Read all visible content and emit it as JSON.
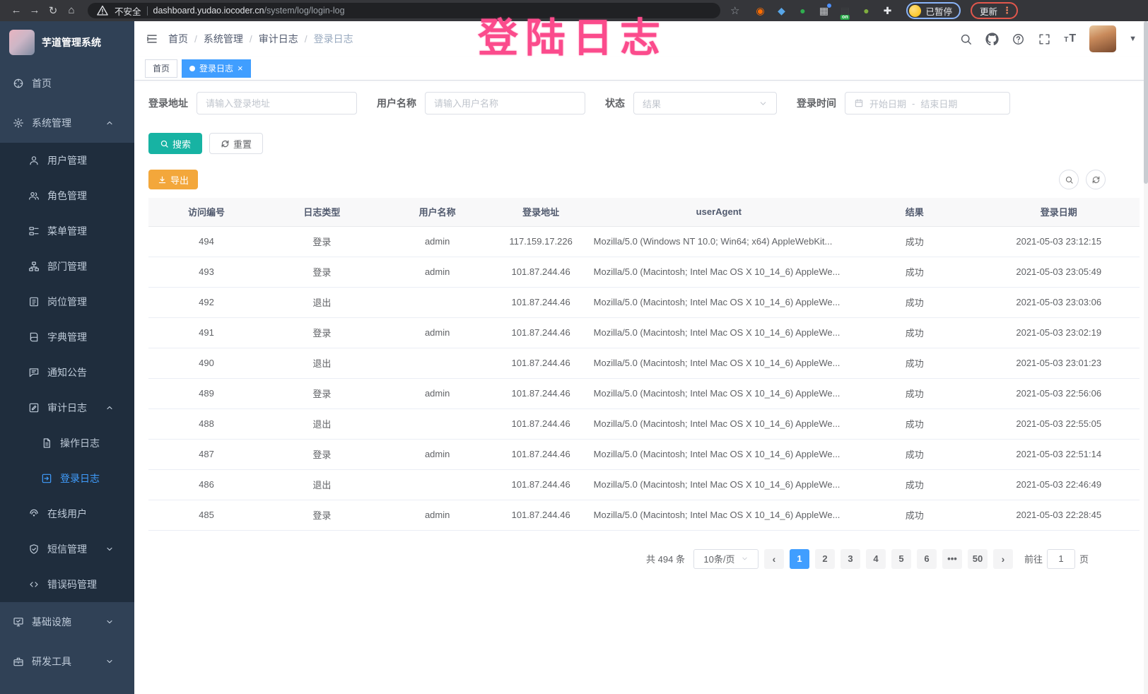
{
  "colors": {
    "accent": "#409eff",
    "search_button": "#17b3a3",
    "export_button": "#f3a73b",
    "sidebar_bg": "#304156",
    "submenu_bg": "#1f2d3d",
    "watermark_pink": "#fb4b8c"
  },
  "watermark": "登陆日志",
  "browser": {
    "nav_icons": [
      {
        "name": "back-icon",
        "glyph": "←"
      },
      {
        "name": "forward-icon",
        "glyph": "→"
      },
      {
        "name": "reload-icon",
        "glyph": "↻"
      },
      {
        "name": "home-icon",
        "glyph": "⌂"
      }
    ],
    "security_label": "不安全",
    "url_domain": "dashboard.yudao.iocoder.cn",
    "url_path": "/system/log/login-log",
    "bookmark_star": "☆",
    "extensions": [
      {
        "name": "adblock-ring-icon",
        "glyph": "◉",
        "color": "#ff6d00"
      },
      {
        "name": "diamond-extension-icon",
        "glyph": "◆",
        "color": "#58a6e8"
      },
      {
        "name": "green-circle-extension-icon",
        "glyph": "●",
        "color": "#2fae4f"
      },
      {
        "name": "apps-grid-icon",
        "glyph": "▦",
        "color": "#c8cacd",
        "dot": true
      },
      {
        "name": "tampermonkey-icon",
        "glyph": "▤",
        "color": "#3e4043",
        "badge": "on"
      },
      {
        "name": "leaf-extension-icon",
        "glyph": "●",
        "color": "#7fae3f"
      },
      {
        "name": "extensions-puzzle-icon",
        "glyph": "✚",
        "color": "#e8eaed"
      }
    ],
    "paused_badge": "已暂停",
    "update_button": "更新",
    "kebab_glyph": "⋮"
  },
  "sidebar": {
    "title": "芋道管理系统",
    "items": [
      {
        "icon": "dashboard",
        "label": "首页",
        "level": 0
      },
      {
        "icon": "gear",
        "label": "系统管理",
        "level": 0,
        "arrow": "up"
      },
      {
        "icon": "user",
        "label": "用户管理",
        "level": 1
      },
      {
        "icon": "users",
        "label": "角色管理",
        "level": 1
      },
      {
        "icon": "tree",
        "label": "菜单管理",
        "level": 1
      },
      {
        "icon": "org",
        "label": "部门管理",
        "level": 1
      },
      {
        "icon": "badge",
        "label": "岗位管理",
        "level": 1
      },
      {
        "icon": "book",
        "label": "字典管理",
        "level": 1
      },
      {
        "icon": "message",
        "label": "通知公告",
        "level": 1
      },
      {
        "icon": "edit",
        "label": "审计日志",
        "level": 1,
        "arrow": "up"
      },
      {
        "icon": "doc",
        "label": "操作日志",
        "level": 2
      },
      {
        "icon": "loginlog",
        "label": "登录日志",
        "level": 2,
        "active": true
      },
      {
        "icon": "online",
        "label": "在线用户",
        "level": 1
      },
      {
        "icon": "shield",
        "label": "短信管理",
        "level": 1,
        "arrow": "down"
      },
      {
        "icon": "code",
        "label": "错误码管理",
        "level": 1
      },
      {
        "icon": "monitor",
        "label": "基础设施",
        "level": 0,
        "arrow": "down"
      },
      {
        "icon": "tool",
        "label": "研发工具",
        "level": 0,
        "arrow": "down"
      }
    ]
  },
  "header": {
    "breadcrumb": [
      "首页",
      "系统管理",
      "审计日志",
      "登录日志"
    ]
  },
  "tabs": [
    {
      "label": "首页",
      "active": false
    },
    {
      "label": "登录日志",
      "active": true,
      "closable": true
    }
  ],
  "filters": {
    "login_address": {
      "label": "登录地址",
      "placeholder": "请输入登录地址"
    },
    "username": {
      "label": "用户名称",
      "placeholder": "请输入用户名称"
    },
    "status": {
      "label": "状态",
      "placeholder": "结果"
    },
    "login_time": {
      "label": "登录时间",
      "start_placeholder": "开始日期",
      "separator": "-",
      "end_placeholder": "结束日期"
    }
  },
  "actions": {
    "search": "搜索",
    "reset": "重置",
    "export": "导出"
  },
  "table": {
    "columns": [
      "访问编号",
      "日志类型",
      "用户名称",
      "登录地址",
      "userAgent",
      "结果",
      "登录日期"
    ],
    "rows": [
      [
        "494",
        "登录",
        "admin",
        "117.159.17.226",
        "Mozilla/5.0 (Windows NT 10.0; Win64; x64) AppleWebKit...",
        "成功",
        "2021-05-03 23:12:15"
      ],
      [
        "493",
        "登录",
        "admin",
        "101.87.244.46",
        "Mozilla/5.0 (Macintosh; Intel Mac OS X 10_14_6) AppleWe...",
        "成功",
        "2021-05-03 23:05:49"
      ],
      [
        "492",
        "退出",
        "",
        "101.87.244.46",
        "Mozilla/5.0 (Macintosh; Intel Mac OS X 10_14_6) AppleWe...",
        "成功",
        "2021-05-03 23:03:06"
      ],
      [
        "491",
        "登录",
        "admin",
        "101.87.244.46",
        "Mozilla/5.0 (Macintosh; Intel Mac OS X 10_14_6) AppleWe...",
        "成功",
        "2021-05-03 23:02:19"
      ],
      [
        "490",
        "退出",
        "",
        "101.87.244.46",
        "Mozilla/5.0 (Macintosh; Intel Mac OS X 10_14_6) AppleWe...",
        "成功",
        "2021-05-03 23:01:23"
      ],
      [
        "489",
        "登录",
        "admin",
        "101.87.244.46",
        "Mozilla/5.0 (Macintosh; Intel Mac OS X 10_14_6) AppleWe...",
        "成功",
        "2021-05-03 22:56:06"
      ],
      [
        "488",
        "退出",
        "",
        "101.87.244.46",
        "Mozilla/5.0 (Macintosh; Intel Mac OS X 10_14_6) AppleWe...",
        "成功",
        "2021-05-03 22:55:05"
      ],
      [
        "487",
        "登录",
        "admin",
        "101.87.244.46",
        "Mozilla/5.0 (Macintosh; Intel Mac OS X 10_14_6) AppleWe...",
        "成功",
        "2021-05-03 22:51:14"
      ],
      [
        "486",
        "退出",
        "",
        "101.87.244.46",
        "Mozilla/5.0 (Macintosh; Intel Mac OS X 10_14_6) AppleWe...",
        "成功",
        "2021-05-03 22:46:49"
      ],
      [
        "485",
        "登录",
        "admin",
        "101.87.244.46",
        "Mozilla/5.0 (Macintosh; Intel Mac OS X 10_14_6) AppleWe...",
        "成功",
        "2021-05-03 22:28:45"
      ]
    ]
  },
  "pagination": {
    "total": "共 494 条",
    "page_size": "10条/页",
    "prev": "‹",
    "next": "›",
    "pages": [
      "1",
      "2",
      "3",
      "4",
      "5",
      "6",
      "•••",
      "50"
    ],
    "active_page": "1",
    "goto_label": "前往",
    "goto_value": "1",
    "goto_suffix": "页"
  }
}
